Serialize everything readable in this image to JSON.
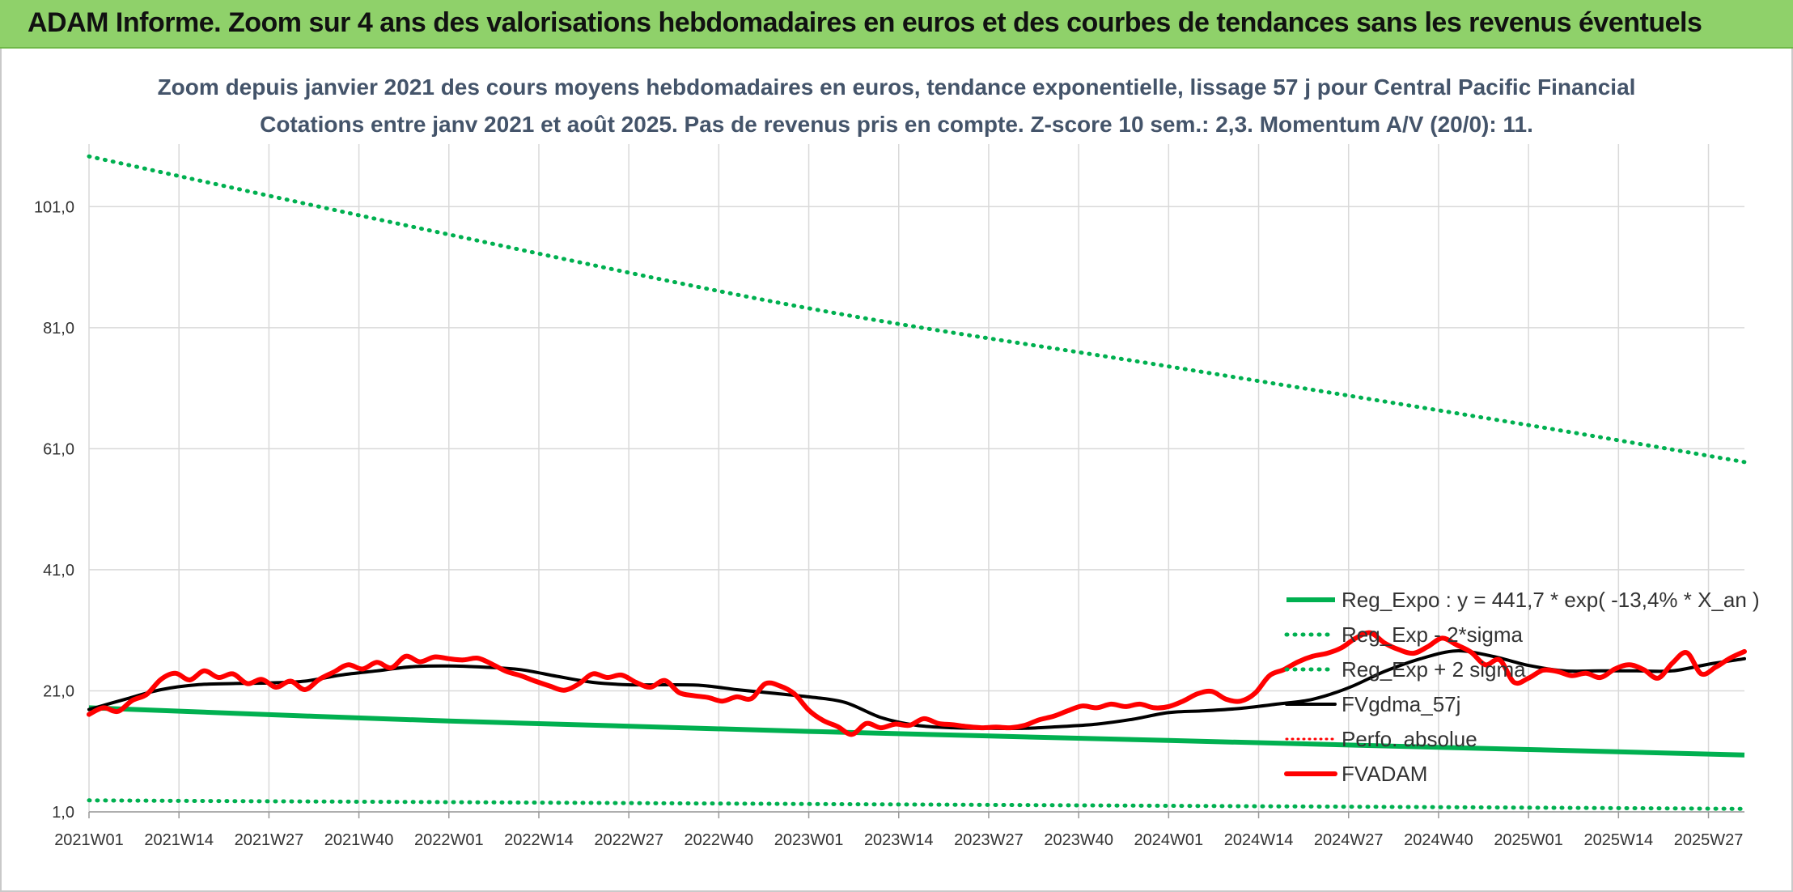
{
  "banner": {
    "title": "ADAM Informe. Zoom sur 4 ans des valorisations hebdomadaires en euros et des courbes de tendances sans les revenus éventuels"
  },
  "colors": {
    "banner": "#8fd16a",
    "trend": "#00b050",
    "smooth": "#000000",
    "price": "#ff0000",
    "perf": "#ff0000",
    "grid": "#d9d9d9",
    "title": "#44546a"
  },
  "chart_data": {
    "type": "line",
    "title": "Zoom depuis janvier 2021 des cours moyens hebdomadaires en euros, tendance exponentielle, lissage 57 j pour Central Pacific Financial",
    "subtitle": "Cotations entre janv 2021 et août 2025. Pas de revenus pris en compte. Z-score 10 sem.: 2,3. Momentum A/V (20/0): 11.",
    "ylim": [
      1,
      110
    ],
    "y_ticks": [
      "1,0",
      "21,0",
      "41,0",
      "61,0",
      "81,0",
      "101,0"
    ],
    "x_ticks": [
      "2021W01",
      "2021W14",
      "2021W27",
      "2021W40",
      "2022W01",
      "2022W14",
      "2022W27",
      "2022W40",
      "2023W01",
      "2023W14",
      "2023W27",
      "2023W40",
      "2024W01",
      "2024W14",
      "2024W27",
      "2024W40",
      "2025W01",
      "2025W14",
      "2025W27"
    ],
    "grid": true,
    "legend_position": "bottom-right",
    "series": [
      {
        "name": "Reg_Expo : y = 441,7 * exp( -13,4% *  X_an )",
        "key": "trend",
        "x": [
          0,
          1.0,
          2.0,
          3.0,
          4.0,
          4.6
        ],
        "values": [
          18.2,
          16.0,
          14.3,
          12.8,
          11.3,
          10.4
        ]
      },
      {
        "name": "Reg_Exp - 2*sigma",
        "key": "lower",
        "x": [
          0,
          1.0,
          2.0,
          3.0,
          4.0,
          4.6
        ],
        "values": [
          2.9,
          2.6,
          2.3,
          2.0,
          1.7,
          1.5
        ]
      },
      {
        "name": "Reg_Exp + 2 sigma",
        "key": "upper",
        "x": [
          0,
          1.0,
          2.0,
          3.0,
          4.0,
          4.6
        ],
        "values": [
          109.3,
          96.4,
          84.2,
          74.6,
          64.9,
          58.8
        ]
      },
      {
        "name": "FVgdma_57j",
        "key": "smooth",
        "x": [
          0,
          0.1,
          0.2,
          0.3,
          0.4,
          0.5,
          0.6,
          0.7,
          0.8,
          0.9,
          1.0,
          1.1,
          1.2,
          1.3,
          1.4,
          1.5,
          1.6,
          1.7,
          1.8,
          1.9,
          2.0,
          2.1,
          2.2,
          2.3,
          2.4,
          2.5,
          2.6,
          2.7,
          2.8,
          2.9,
          3.0,
          3.1,
          3.2,
          3.3,
          3.4,
          3.5,
          3.6,
          3.7,
          3.8,
          3.9,
          4.0,
          4.1,
          4.2,
          4.3,
          4.4,
          4.5,
          4.6
        ],
        "values": [
          17.9,
          19.6,
          21.2,
          22.0,
          22.2,
          22.3,
          22.6,
          23.6,
          24.3,
          25.0,
          25.1,
          24.9,
          24.5,
          23.4,
          22.4,
          22.0,
          22.0,
          21.9,
          21.2,
          20.6,
          20.0,
          19.1,
          16.6,
          15.3,
          14.9,
          14.8,
          14.8,
          15.1,
          15.5,
          16.3,
          17.4,
          17.7,
          18.1,
          18.8,
          19.6,
          21.5,
          24.2,
          26.3,
          27.6,
          26.7,
          25.2,
          24.3,
          24.3,
          24.3,
          24.3,
          25.4,
          26.3
        ]
      },
      {
        "name": "Perfo. absolue",
        "key": "perf",
        "x": [],
        "values": []
      },
      {
        "name": "FVADAM",
        "key": "price",
        "x": [
          0,
          0.04,
          0.08,
          0.12,
          0.16,
          0.2,
          0.24,
          0.28,
          0.32,
          0.36,
          0.4,
          0.44,
          0.48,
          0.52,
          0.56,
          0.6,
          0.64,
          0.68,
          0.72,
          0.76,
          0.8,
          0.84,
          0.88,
          0.92,
          0.96,
          1.0,
          1.04,
          1.08,
          1.12,
          1.16,
          1.2,
          1.24,
          1.28,
          1.32,
          1.36,
          1.4,
          1.44,
          1.48,
          1.52,
          1.56,
          1.6,
          1.64,
          1.68,
          1.72,
          1.76,
          1.8,
          1.84,
          1.88,
          1.92,
          1.96,
          2.0,
          2.04,
          2.08,
          2.12,
          2.16,
          2.2,
          2.24,
          2.28,
          2.32,
          2.36,
          2.4,
          2.44,
          2.48,
          2.52,
          2.56,
          2.6,
          2.64,
          2.68,
          2.72,
          2.76,
          2.8,
          2.84,
          2.88,
          2.92,
          2.96,
          3.0,
          3.04,
          3.08,
          3.12,
          3.16,
          3.2,
          3.24,
          3.28,
          3.32,
          3.36,
          3.4,
          3.44,
          3.48,
          3.52,
          3.56,
          3.6,
          3.64,
          3.68,
          3.72,
          3.76,
          3.8,
          3.84,
          3.88,
          3.92,
          3.96,
          4.0,
          4.04,
          4.08,
          4.12,
          4.16,
          4.2,
          4.24,
          4.28,
          4.32,
          4.36,
          4.4,
          4.44,
          4.48,
          4.52,
          4.56,
          4.6
        ],
        "values": [
          17.1,
          18.2,
          17.6,
          19.4,
          20.4,
          22.9,
          23.9,
          22.8,
          24.3,
          23.2,
          23.8,
          22.2,
          22.9,
          21.6,
          22.6,
          21.2,
          22.9,
          24.1,
          25.3,
          24.6,
          25.7,
          24.8,
          26.7,
          25.8,
          26.6,
          26.3,
          26.1,
          26.4,
          25.4,
          24.2,
          23.5,
          22.6,
          21.8,
          21.1,
          22.1,
          23.8,
          23.2,
          23.6,
          22.4,
          21.6,
          22.7,
          20.7,
          20.2,
          19.9,
          19.3,
          20.0,
          19.7,
          22.2,
          21.8,
          20.5,
          17.8,
          16.1,
          15.1,
          13.8,
          15.6,
          14.9,
          15.5,
          15.3,
          16.4,
          15.6,
          15.4,
          15.1,
          14.9,
          15.0,
          14.9,
          15.3,
          16.2,
          16.8,
          17.7,
          18.5,
          18.2,
          18.8,
          18.4,
          18.8,
          18.2,
          18.4,
          19.3,
          20.5,
          20.9,
          19.6,
          19.3,
          20.6,
          23.5,
          24.5,
          25.8,
          26.7,
          27.2,
          28.1,
          29.7,
          30.6,
          28.9,
          27.8,
          27.2,
          28.3,
          29.7,
          28.6,
          27.4,
          25.3,
          26.1,
          22.4,
          23.1,
          24.4,
          24.2,
          23.5,
          23.9,
          23.2,
          24.6,
          25.3,
          24.5,
          23.1,
          25.6,
          27.3,
          23.8,
          24.9,
          26.4,
          27.5
        ]
      }
    ]
  }
}
